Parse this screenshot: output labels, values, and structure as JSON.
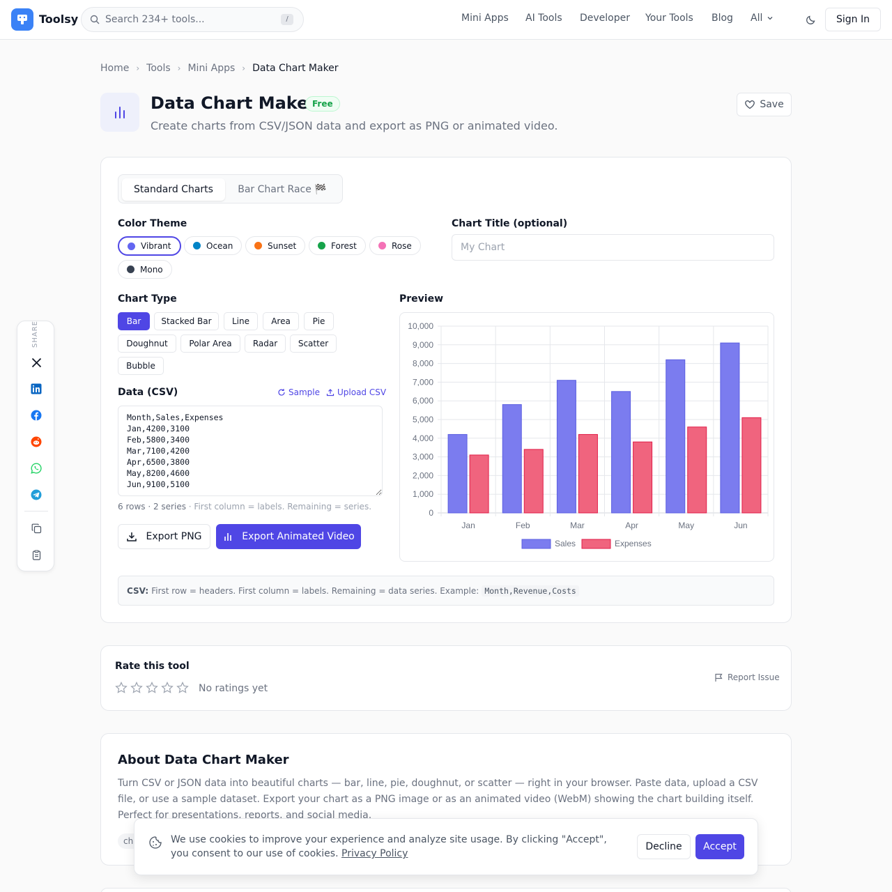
{
  "header": {
    "brand": "Toolsy",
    "search_placeholder": "Search 234+ tools...",
    "search_shortcut": "/",
    "nav": [
      "Mini Apps",
      "AI Tools",
      "Developer",
      "Your Tools",
      "Blog",
      "All"
    ],
    "sign_in": "Sign In"
  },
  "breadcrumb": [
    "Home",
    "Tools",
    "Mini Apps",
    "Data Chart Maker"
  ],
  "tool": {
    "title": "Data Chart Maker",
    "badge": "Free",
    "subtitle": "Create charts from CSV/JSON data and export as PNG or animated video.",
    "save": "Save"
  },
  "tabs": {
    "standard": "Standard Charts",
    "race": "Bar Chart Race 🏁"
  },
  "color_theme": {
    "label": "Color Theme",
    "options": [
      {
        "name": "Vibrant",
        "color": "#6366f1"
      },
      {
        "name": "Ocean",
        "color": "#0284c7"
      },
      {
        "name": "Sunset",
        "color": "#f97316"
      },
      {
        "name": "Forest",
        "color": "#16a34a"
      },
      {
        "name": "Rose",
        "color": "#f472b6"
      },
      {
        "name": "Mono",
        "color": "#374151"
      }
    ],
    "selected": "Vibrant"
  },
  "chart_title_field": {
    "label": "Chart Title (optional)",
    "placeholder": "My Chart"
  },
  "chart_type": {
    "label": "Chart Type",
    "options": [
      "Bar",
      "Stacked Bar",
      "Line",
      "Area",
      "Pie",
      "Doughnut",
      "Polar Area",
      "Radar",
      "Scatter",
      "Bubble"
    ],
    "selected": "Bar"
  },
  "data_csv": {
    "label": "Data (CSV)",
    "sample": "Sample",
    "upload": "Upload CSV",
    "value": "Month,Sales,Expenses\nJan,4200,3100\nFeb,5800,3400\nMar,7100,4200\nApr,6500,3800\nMay,8200,4600\nJun,9100,5100",
    "meta": "6 rows · 2 series",
    "meta_hint": "· First column = labels. Remaining = series."
  },
  "buttons": {
    "export_png": "Export PNG",
    "export_video": "Export Animated Video"
  },
  "preview_label": "Preview",
  "chart_data": {
    "type": "bar",
    "categories": [
      "Jan",
      "Feb",
      "Mar",
      "Apr",
      "May",
      "Jun"
    ],
    "series": [
      {
        "name": "Sales",
        "values": [
          4200,
          5800,
          7100,
          6500,
          8200,
          9100
        ],
        "color": "#7b7cef",
        "border": "#5b5fe0"
      },
      {
        "name": "Expenses",
        "values": [
          3100,
          3400,
          4200,
          3800,
          4600,
          5100
        ],
        "color": "#f0647e",
        "border": "#e11d48"
      }
    ],
    "ylim": [
      0,
      10000
    ],
    "yticks": [
      "0",
      "1,000",
      "2,000",
      "3,000",
      "4,000",
      "5,000",
      "6,000",
      "7,000",
      "8,000",
      "9,000",
      "10,000"
    ],
    "grid": true,
    "legend": "bottom"
  },
  "csv_hint": {
    "bold": "CSV:",
    "text": "First row = headers. First column = labels. Remaining = data series. Example:",
    "code": "Month,Revenue,Costs"
  },
  "share": {
    "label": "SHARE"
  },
  "rating": {
    "title": "Rate this tool",
    "none": "No ratings yet",
    "report": "Report Issue"
  },
  "about": {
    "title": "About Data Chart Maker",
    "text": "Turn CSV or JSON data into beautiful charts — bar, line, pie, doughnut, or scatter — right in your browser. Paste data, upload a CSV file, or use a sample dataset. Export your chart as a PNG image or as an animated video (WebM) showing the chart building itself. Perfect for presentations, reports, and social media.",
    "tag": "cha"
  },
  "cookie": {
    "text": "We use cookies to improve your experience and analyze site usage. By clicking \"Accept\", you consent to our use of cookies.",
    "link": "Privacy Policy",
    "decline": "Decline",
    "accept": "Accept"
  }
}
